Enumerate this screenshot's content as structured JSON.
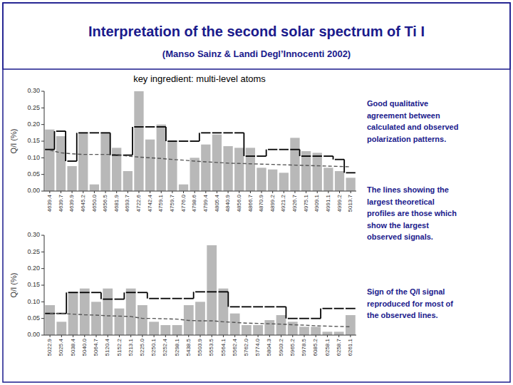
{
  "chart_data": [
    {
      "type": "bar",
      "title": "Interpretation of the second solar spectrum of Ti I",
      "subtitle": [
        "(Manso Sainz & Landi Degl’Innocenti 2002)",
        "key ingredient: multi-level atoms"
      ],
      "categories": [
        "4639.4",
        "4639.7",
        "4639.9",
        "4645.2",
        "4650.0",
        "4656.5",
        "4681.9",
        "4693.7",
        "4722.6",
        "4742.4",
        "4759.1",
        "4759.7",
        "4776.0",
        "4798.6",
        "4799.4",
        "4805.4",
        "4840.9",
        "4856.0",
        "4866.7",
        "4870.9",
        "4899.2",
        "4921.2",
        "4926.7",
        "4975.1",
        "4909.1",
        "4991.1",
        "4999.2",
        "5013.7"
      ],
      "series": [
        {
          "type": "bar",
          "color": "#b8b8b8",
          "values": [
            0.185,
            0.165,
            0.075,
            0.175,
            0.02,
            0.175,
            0.13,
            0.06,
            0.3,
            0.155,
            0.2,
            0.15,
            0.02,
            0.1,
            0.14,
            0.17,
            0.135,
            0.13,
            0.13,
            0.07,
            0.065,
            0.055,
            0.16,
            0.12,
            0.115,
            0.07,
            0.06,
            0.04
          ]
        },
        {
          "type": "step",
          "color": "#000000",
          "line_style": "solid",
          "values": [
            0.125,
            0.18,
            0.09,
            0.175,
            0.175,
            0.175,
            0.108,
            0.108,
            0.193,
            0.193,
            0.193,
            0.15,
            0.15,
            0.15,
            0.175,
            0.175,
            0.175,
            0.175,
            0.105,
            0.105,
            0.125,
            0.125,
            0.125,
            0.105,
            0.105,
            0.105,
            0.095,
            0.055
          ]
        },
        {
          "type": "line",
          "color": "#555555",
          "line_style": "dashed",
          "values": [
            0.123,
            0.115,
            0.112,
            0.11,
            0.11,
            0.11,
            0.11,
            0.105,
            0.102,
            0.1,
            0.098,
            0.095,
            0.093,
            0.09,
            0.088,
            0.086,
            0.084,
            0.083,
            0.082,
            0.081,
            0.08,
            0.079,
            0.078,
            0.077,
            0.076,
            0.075,
            0.074,
            0.073
          ]
        }
      ],
      "ylim": [
        0,
        0.3
      ],
      "yticks": [
        {
          "value": 0,
          "label": "0.00"
        },
        {
          "value": 0.05,
          "label": "0.05"
        },
        {
          "value": 0.1,
          "label": "0.10"
        },
        {
          "value": 0.15,
          "label": "0.15"
        },
        {
          "value": 0.2,
          "label": "0.20"
        },
        {
          "value": 0.25,
          "label": "0.25"
        },
        {
          "value": 0.3,
          "label": "0.30"
        }
      ],
      "y_label": "Q/I (%)",
      "grid": false,
      "annotations": [
        "Good qualitative\nagreement between\ncalculated and observed\npolarization patterns.",
        "The lines showing the\nlargest theoretical\nprofiles are those which\nshow the largest\nobserved signals."
      ]
    },
    {
      "type": "bar",
      "categories": [
        "5022.9",
        "5025.4",
        "5038.4",
        "5040.0",
        "5064.7",
        "5120.4",
        "5152.2",
        "5213.1",
        "5225.0",
        "5250.1",
        "5252.4",
        "5298.1",
        "5438.5",
        "5503.9",
        "5553.5",
        "5564.1",
        "5562.4",
        "5762.0",
        "5774.0",
        "5804.3",
        "5903.2",
        "5965.2",
        "5978.5",
        "6085.2",
        "6258.1",
        "6258.7",
        "6261.1"
      ],
      "series": [
        {
          "type": "bar",
          "color": "#b8b8b8",
          "values": [
            0.09,
            0.04,
            0.13,
            0.14,
            0.1,
            0.14,
            0.08,
            0.14,
            0.09,
            0.04,
            0.03,
            0.03,
            0.09,
            0.1,
            0.27,
            0.14,
            0.065,
            0.03,
            0.03,
            0.045,
            0.06,
            0.04,
            0.025,
            0.025,
            0.01,
            0.01,
            0.06
          ]
        },
        {
          "type": "step",
          "color": "#000000",
          "line_style": "solid",
          "values": [
            0.065,
            0.065,
            0.128,
            0.128,
            0.128,
            0.108,
            0.108,
            0.128,
            0.128,
            0.11,
            0.11,
            0.11,
            0.11,
            0.13,
            0.13,
            0.13,
            0.085,
            0.085,
            0.085,
            0.085,
            0.085,
            0.05,
            0.05,
            0.05,
            0.08,
            0.08,
            0.08
          ]
        },
        {
          "type": "line",
          "color": "#555555",
          "line_style": "dashed",
          "values": [
            0.065,
            0.065,
            0.063,
            0.061,
            0.06,
            0.058,
            0.057,
            0.056,
            0.05,
            0.05,
            0.049,
            0.048,
            0.044,
            0.043,
            0.043,
            0.04,
            0.038,
            0.036,
            0.035,
            0.034,
            0.033,
            0.031,
            0.03,
            0.028,
            0.027,
            0.026,
            0.025
          ]
        }
      ],
      "ylim": [
        0,
        0.3
      ],
      "yticks": [
        {
          "value": 0,
          "label": "0.00"
        },
        {
          "value": 0.05,
          "label": "0.05"
        },
        {
          "value": 0.1,
          "label": "0.10"
        },
        {
          "value": 0.15,
          "label": "0.15"
        },
        {
          "value": 0.2,
          "label": "0.20"
        },
        {
          "value": 0.25,
          "label": "0.25"
        },
        {
          "value": 0.3,
          "label": "0.30"
        }
      ],
      "y_label": "Q/I (%)",
      "grid": false,
      "annotations": [
        "Sign of the Q/I signal\nreproduced for most of\nthe observed lines."
      ]
    }
  ]
}
